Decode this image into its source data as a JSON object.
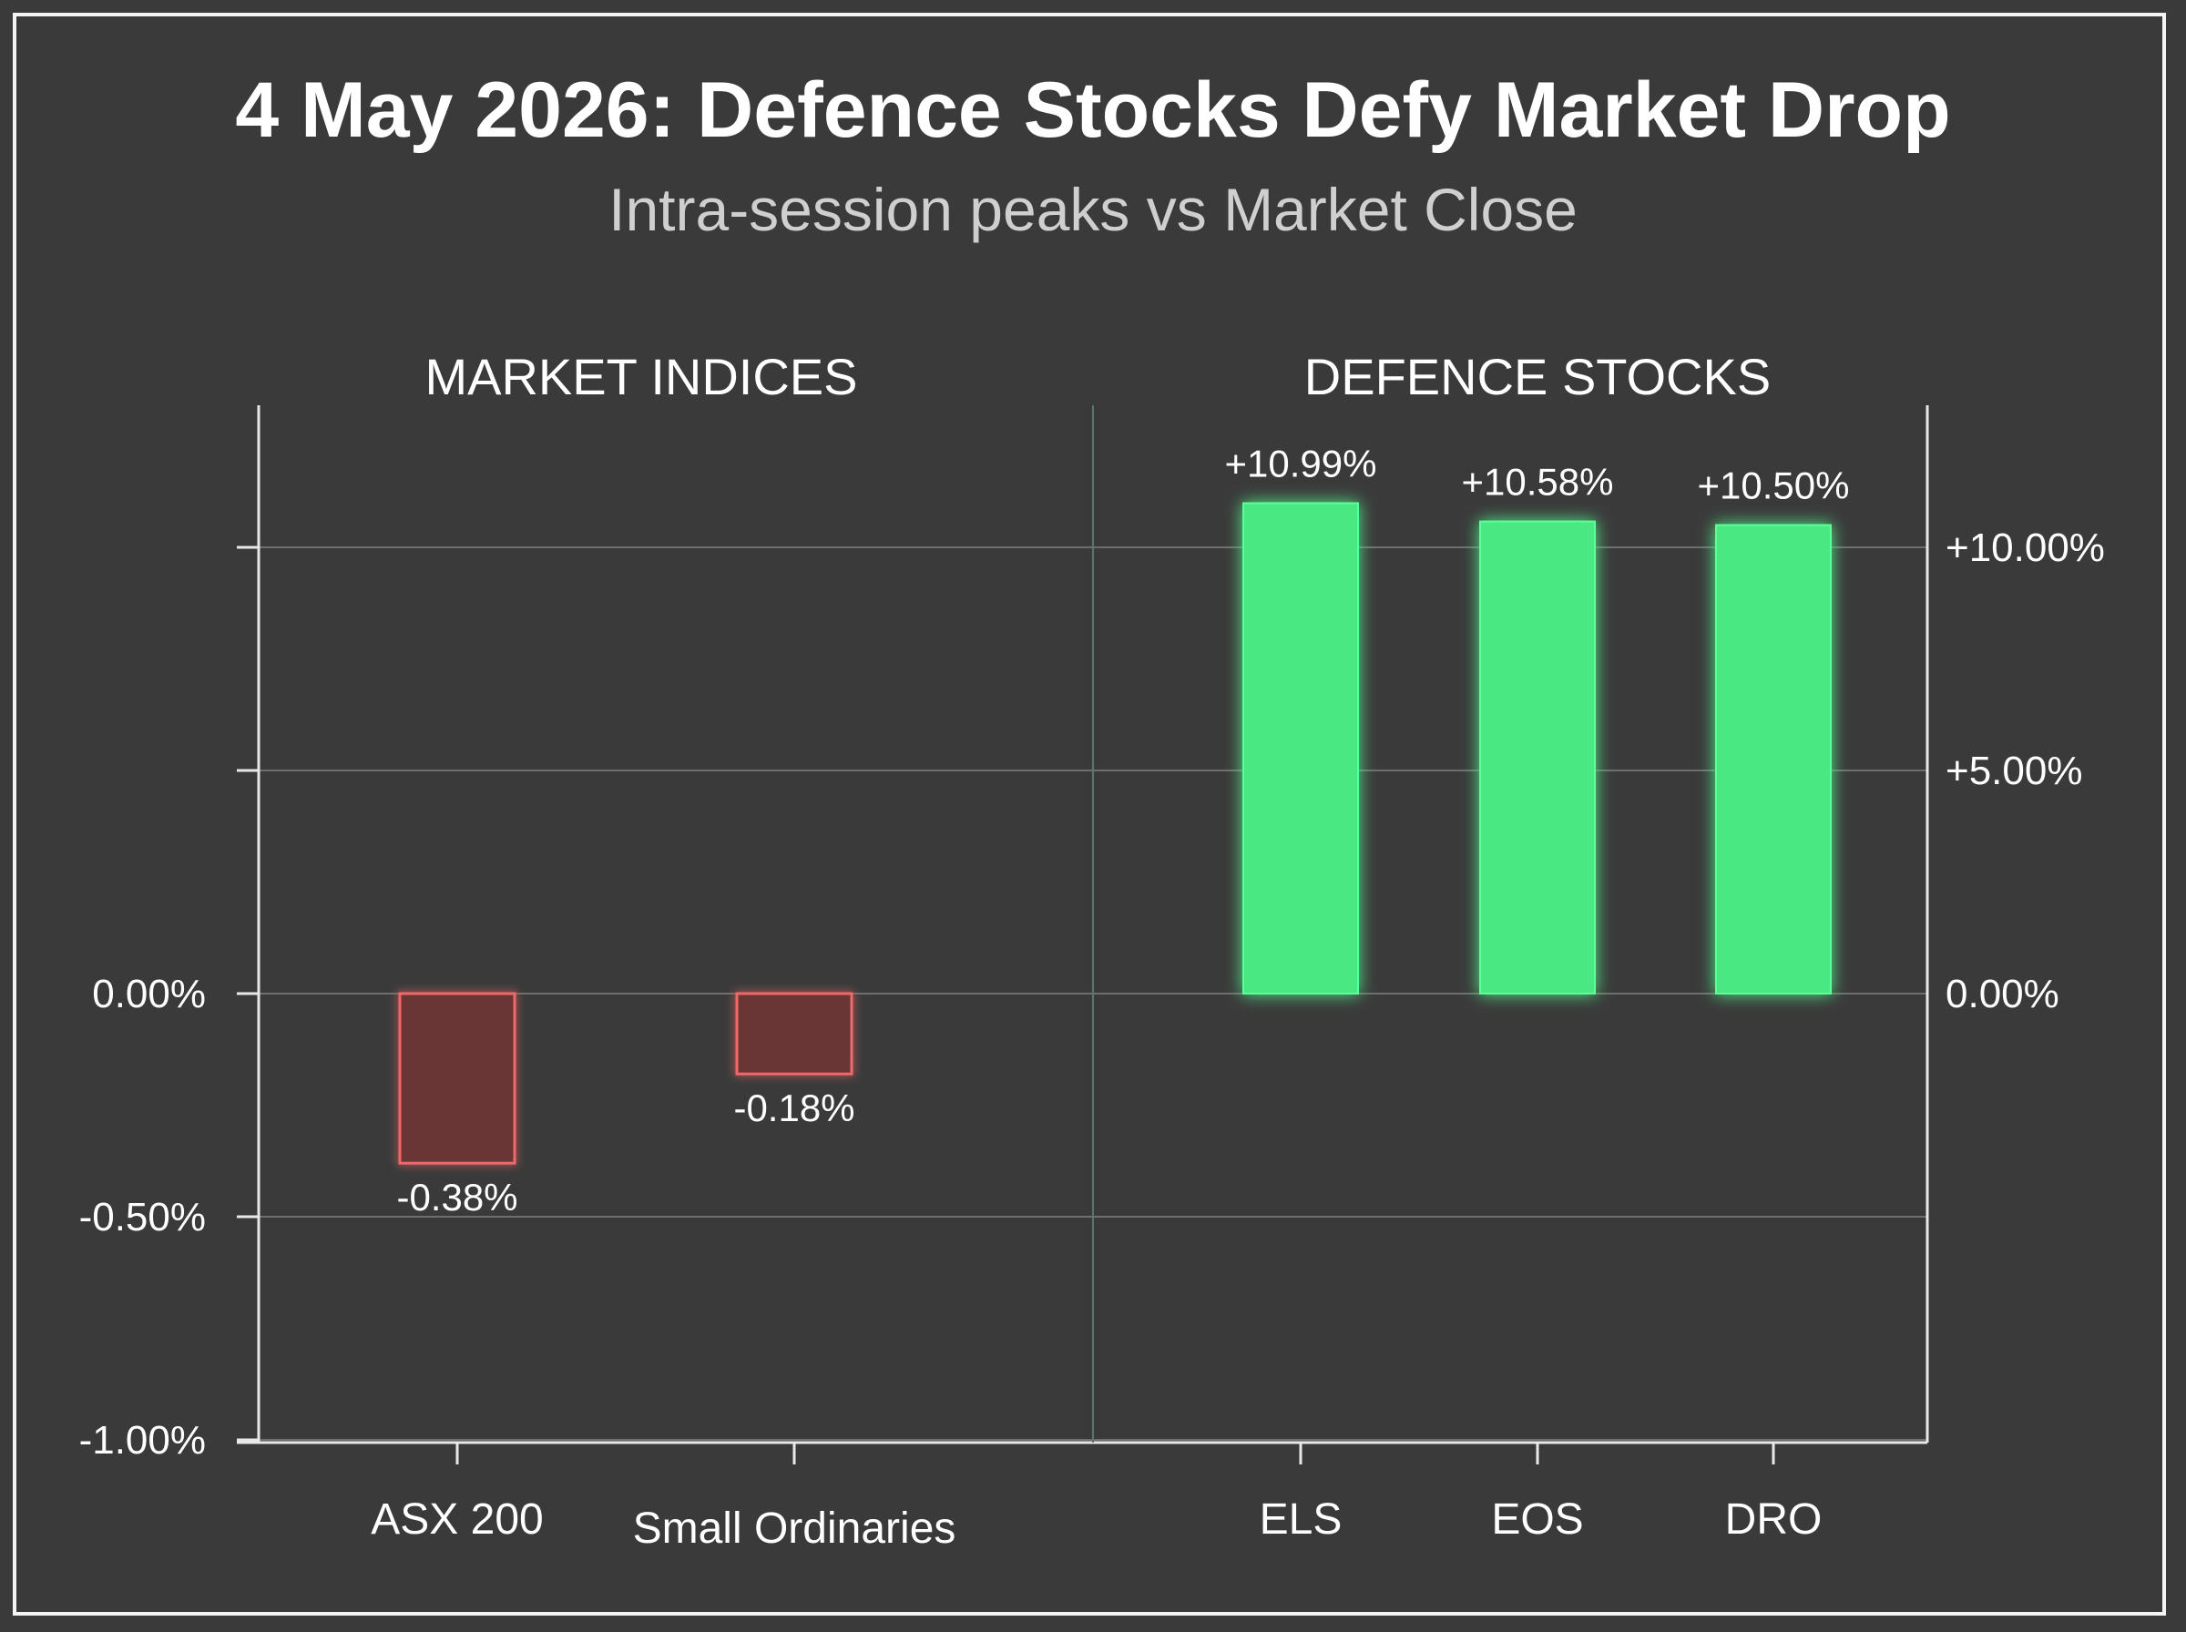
{
  "chart_data": {
    "type": "bar",
    "title": "4 May 2026: Defence Stocks Defy Market Drop",
    "subtitle": "Intra-session peaks vs Market Close",
    "colors": {
      "background": "#3a3a3a",
      "negative_fill": "#6a3434",
      "negative_stroke": "#ee6a6a",
      "positive_fill": "#4ae882",
      "positive_glow": "#5cff98"
    },
    "grid": true,
    "panels": [
      {
        "title": "MARKET INDICES",
        "categories": [
          "ASX 200",
          "Small Ordinaries"
        ],
        "values": [
          -0.38,
          -0.18
        ],
        "labels": [
          "-0.38%",
          "-0.18%"
        ],
        "ylim": [
          -1.0,
          1.0
        ],
        "yticks": [
          1.0,
          0.5,
          0.0,
          -0.5,
          -1.0
        ],
        "ytick_labels": [
          "",
          "",
          "0.00%",
          "-0.50%",
          "-1.00%"
        ],
        "axis_side": "left"
      },
      {
        "title": "DEFENCE STOCKS",
        "categories": [
          "ELS",
          "EOS",
          "DRO"
        ],
        "values": [
          10.99,
          10.58,
          10.5
        ],
        "labels": [
          "+10.99%",
          "+10.58%",
          "+10.50%"
        ],
        "ylim": [
          -20.0,
          12.5
        ],
        "yticks": [
          10.0,
          5.0,
          0.0
        ],
        "ytick_labels": [
          "+10.00%",
          "+5.00%",
          "0.00%"
        ],
        "axis_side": "right"
      }
    ]
  }
}
